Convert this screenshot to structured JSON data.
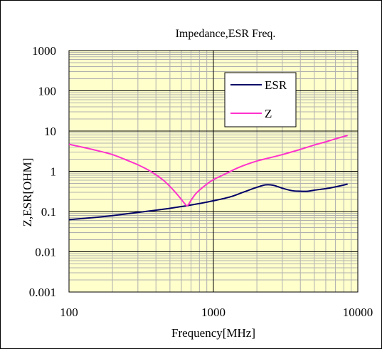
{
  "chart_data": {
    "type": "line",
    "title": "Impedance,ESR Freq.",
    "xlabel": "Frequency[MHz]",
    "ylabel": "Z,ESR[OHM]",
    "xscale": "log",
    "yscale": "log",
    "xlim": [
      100,
      10000
    ],
    "ylim": [
      0.001,
      1000
    ],
    "xticks": [
      "100",
      "1000",
      "10000"
    ],
    "yticks": [
      "0.001",
      "0.01",
      "0.1",
      "1",
      "10",
      "100",
      "1000"
    ],
    "grid": true,
    "legend_position": "upper-right (inside plot)",
    "colors": {
      "plot_background": "#ffffcc",
      "minor_grid": "#b0b0b0",
      "major_grid": "#000000",
      "ESR": "#000066",
      "Z": "#ff33cc"
    },
    "series": [
      {
        "name": "ESR",
        "color": "#000066",
        "x": [
          100,
          150,
          200,
          300,
          400,
          500,
          600,
          660,
          800,
          1000,
          1300,
          1600,
          2000,
          2300,
          2600,
          3000,
          3500,
          4000,
          4500,
          5000,
          6000,
          7000,
          8500
        ],
        "y": [
          0.063,
          0.071,
          0.079,
          0.095,
          0.108,
          0.12,
          0.133,
          0.14,
          0.158,
          0.185,
          0.23,
          0.3,
          0.4,
          0.46,
          0.45,
          0.38,
          0.33,
          0.32,
          0.32,
          0.34,
          0.37,
          0.41,
          0.48
        ]
      },
      {
        "name": "Z",
        "color": "#ff33cc",
        "x": [
          100,
          150,
          200,
          250,
          300,
          350,
          400,
          450,
          500,
          550,
          600,
          630,
          660,
          700,
          750,
          800,
          900,
          1000,
          1200,
          1500,
          2000,
          2500,
          3000,
          4000,
          5000,
          6000,
          7000,
          8500
        ],
        "y": [
          4.7,
          3.4,
          2.6,
          1.9,
          1.45,
          1.1,
          0.82,
          0.6,
          0.42,
          0.29,
          0.2,
          0.16,
          0.14,
          0.19,
          0.27,
          0.34,
          0.48,
          0.62,
          0.85,
          1.25,
          1.8,
          2.2,
          2.6,
          3.5,
          4.5,
          5.4,
          6.4,
          7.8
        ]
      }
    ]
  }
}
